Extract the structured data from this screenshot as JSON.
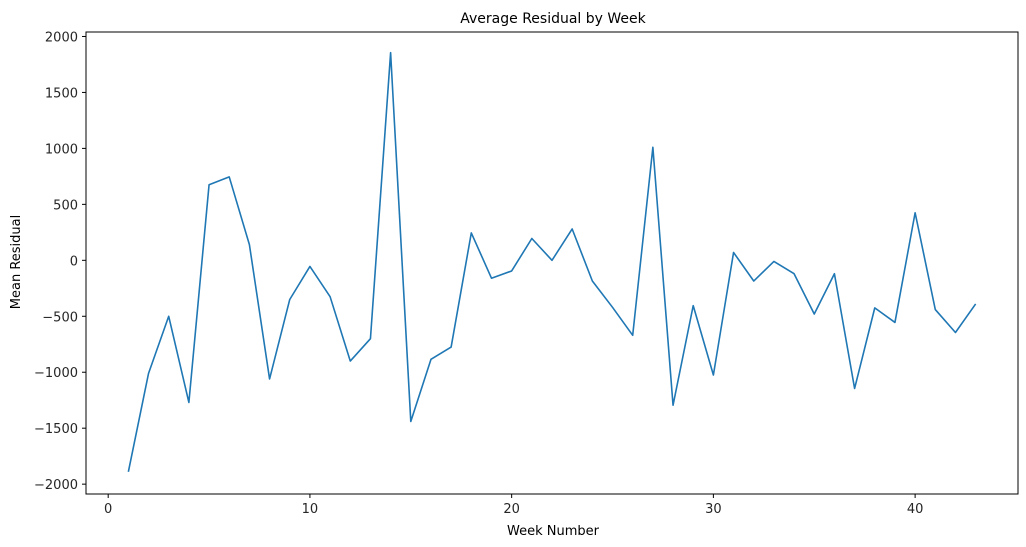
{
  "chart_data": {
    "type": "line",
    "title": "Average Residual by Week",
    "xlabel": "Week Number",
    "ylabel": "Mean Residual",
    "xlim": [
      -1.1,
      45.1
    ],
    "ylim": [
      -2088,
      2040
    ],
    "x_ticks": [
      0,
      10,
      20,
      30,
      40
    ],
    "x_tick_labels": [
      "0",
      "10",
      "20",
      "30",
      "40"
    ],
    "y_ticks": [
      -2000,
      -1500,
      -1000,
      -500,
      0,
      500,
      1000,
      1500,
      2000
    ],
    "y_tick_labels": [
      "−2000",
      "−1500",
      "−1000",
      "−500",
      "0",
      "500",
      "1000",
      "1500",
      "2000"
    ],
    "grid": false,
    "series": [
      {
        "color": "#1f77b4",
        "x": [
          1,
          2,
          3,
          4,
          5,
          6,
          7,
          8,
          9,
          10,
          11,
          12,
          13,
          14,
          15,
          16,
          17,
          18,
          19,
          20,
          21,
          22,
          23,
          24,
          25,
          26,
          27,
          28,
          29,
          30,
          31,
          32,
          33,
          34,
          35,
          36,
          37,
          38,
          39,
          40,
          41,
          42,
          43
        ],
        "values": [
          -1890,
          -1010,
          -500,
          -1270,
          675,
          745,
          140,
          -1060,
          -350,
          -55,
          -325,
          -900,
          -700,
          1855,
          -1440,
          -885,
          -775,
          245,
          -160,
          -95,
          195,
          0,
          280,
          -185,
          -420,
          -670,
          1010,
          -1295,
          -405,
          -1025,
          70,
          -185,
          -10,
          -120,
          -480,
          -120,
          -1145,
          -425,
          -555,
          425,
          -440,
          -645,
          -390
        ]
      }
    ]
  }
}
